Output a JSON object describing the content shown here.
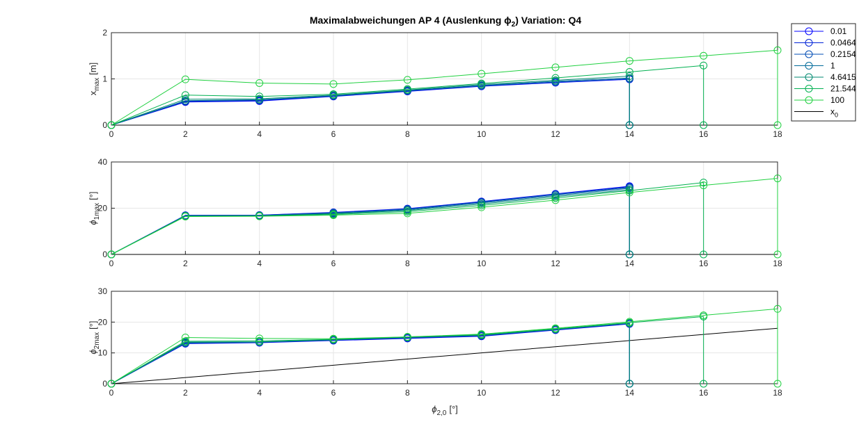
{
  "chart_data": {
    "type": "line",
    "title": "Maximalabweichungen AP 4 (Auslenkung ϕ",
    "title_sub": "2",
    "title_rest": ")  Variation: Q4",
    "xlabel": "ϕ",
    "xlabel_sub": "2,0",
    "xlabel_unit": "[°]",
    "x": [
      0,
      2,
      4,
      6,
      8,
      10,
      12,
      14,
      16,
      18
    ],
    "xlim": [
      0,
      18
    ],
    "xticks": [
      0,
      2,
      4,
      6,
      8,
      10,
      12,
      14,
      16,
      18
    ],
    "grid": true,
    "legend_position": "outside-top-right",
    "legend": [
      {
        "name": "0.01",
        "color": "#0000ff",
        "marker": "circle"
      },
      {
        "name": "0.0464",
        "color": "#0022d8",
        "marker": "circle"
      },
      {
        "name": "0.2154",
        "color": "#004cb4",
        "marker": "circle"
      },
      {
        "name": "1",
        "color": "#006a9a",
        "marker": "circle"
      },
      {
        "name": "4.6415",
        "color": "#008a70",
        "marker": "circle"
      },
      {
        "name": "21.544",
        "color": "#00b050",
        "marker": "circle"
      },
      {
        "name": "100",
        "color": "#20d040",
        "marker": "circle"
      },
      {
        "name": "x",
        "name_sub": "0",
        "color": "#000000",
        "marker": "none"
      }
    ],
    "subplots": [
      {
        "ylabel": "x",
        "ylabel_sub": "max",
        "ylabel_unit": "[m]",
        "ylim": [
          0,
          2
        ],
        "yticks": [
          0,
          1,
          2
        ],
        "reference": [
          0,
          0,
          0,
          0,
          0,
          0,
          0,
          0,
          0,
          0
        ],
        "series": [
          {
            "values": [
              0,
              0.5,
              0.52,
              0.62,
              0.73,
              0.84,
              0.92,
              0.99,
              null,
              null
            ],
            "stem": 14
          },
          {
            "values": [
              0,
              0.51,
              0.53,
              0.63,
              0.74,
              0.85,
              0.93,
              1.0,
              null,
              null
            ],
            "stem": 14
          },
          {
            "values": [
              0,
              0.52,
              0.54,
              0.63,
              0.74,
              0.85,
              0.93,
              1.0,
              null,
              null
            ],
            "stem": 14
          },
          {
            "values": [
              0,
              0.53,
              0.55,
              0.64,
              0.75,
              0.86,
              0.95,
              1.02,
              null,
              null
            ],
            "stem": 14
          },
          {
            "values": [
              0,
              0.56,
              0.57,
              0.65,
              0.76,
              0.88,
              0.97,
              1.06,
              null,
              null
            ],
            "stem": 14
          },
          {
            "values": [
              0,
              0.65,
              0.62,
              0.67,
              0.78,
              0.9,
              1.02,
              1.15,
              1.29,
              null
            ],
            "stem": 16
          },
          {
            "values": [
              0,
              0.99,
              0.91,
              0.89,
              0.98,
              1.11,
              1.25,
              1.39,
              1.5,
              1.62
            ],
            "stem": 18
          }
        ]
      },
      {
        "ylabel": "ϕ",
        "ylabel_sub": "1max",
        "ylabel_unit": "[°]",
        "ylim": [
          0,
          40
        ],
        "yticks": [
          0,
          20,
          40
        ],
        "reference": [
          0,
          0,
          0,
          0,
          0,
          0,
          0,
          0,
          0,
          0
        ],
        "series": [
          {
            "values": [
              0,
              16.9,
              17.0,
              18.2,
              19.8,
              22.9,
              26.2,
              29.5,
              null,
              null
            ],
            "stem": 14
          },
          {
            "values": [
              0,
              16.9,
              17.0,
              18.1,
              19.7,
              22.8,
              26.1,
              29.3,
              null,
              null
            ],
            "stem": 14
          },
          {
            "values": [
              0,
              16.8,
              16.9,
              18.0,
              19.6,
              22.6,
              25.9,
              29.0,
              null,
              null
            ],
            "stem": 14
          },
          {
            "values": [
              0,
              16.7,
              16.8,
              17.8,
              19.3,
              22.3,
              25.5,
              28.6,
              null,
              null
            ],
            "stem": 14
          },
          {
            "values": [
              0,
              16.6,
              16.7,
              17.6,
              19.0,
              21.8,
              25.0,
              28.0,
              null,
              null
            ],
            "stem": 14
          },
          {
            "values": [
              0,
              16.5,
              16.6,
              17.3,
              18.5,
              21.2,
              24.4,
              27.6,
              31.1,
              null
            ],
            "stem": 16
          },
          {
            "values": [
              0,
              16.4,
              16.5,
              17.0,
              17.8,
              20.4,
              23.5,
              26.8,
              29.9,
              32.9
            ],
            "stem": 18
          }
        ]
      },
      {
        "ylabel": "ϕ",
        "ylabel_sub": "2max",
        "ylabel_unit": "[°]",
        "ylim": [
          0,
          30
        ],
        "yticks": [
          0,
          10,
          20,
          30
        ],
        "reference": [
          0,
          2,
          4,
          6,
          8,
          10,
          12,
          14,
          16,
          18
        ],
        "series": [
          {
            "values": [
              0,
              13.0,
              13.3,
              14.0,
              14.7,
              15.4,
              17.4,
              19.4,
              null,
              null
            ],
            "stem": 14
          },
          {
            "values": [
              0,
              13.1,
              13.4,
              14.1,
              14.8,
              15.5,
              17.5,
              19.5,
              null,
              null
            ],
            "stem": 14
          },
          {
            "values": [
              0,
              13.2,
              13.5,
              14.2,
              14.9,
              15.6,
              17.6,
              19.6,
              null,
              null
            ],
            "stem": 14
          },
          {
            "values": [
              0,
              13.3,
              13.5,
              14.2,
              15.0,
              15.7,
              17.6,
              19.6,
              null,
              null
            ],
            "stem": 14
          },
          {
            "values": [
              0,
              13.5,
              13.6,
              14.3,
              15.1,
              15.8,
              17.7,
              19.7,
              null,
              null
            ],
            "stem": 14
          },
          {
            "values": [
              0,
              13.8,
              13.9,
              14.4,
              15.2,
              15.9,
              17.8,
              19.8,
              21.8,
              null
            ],
            "stem": 16
          },
          {
            "values": [
              0,
              15.0,
              14.7,
              14.6,
              15.2,
              16.1,
              18.0,
              20.1,
              22.2,
              24.3
            ],
            "stem": 18
          }
        ]
      }
    ]
  }
}
